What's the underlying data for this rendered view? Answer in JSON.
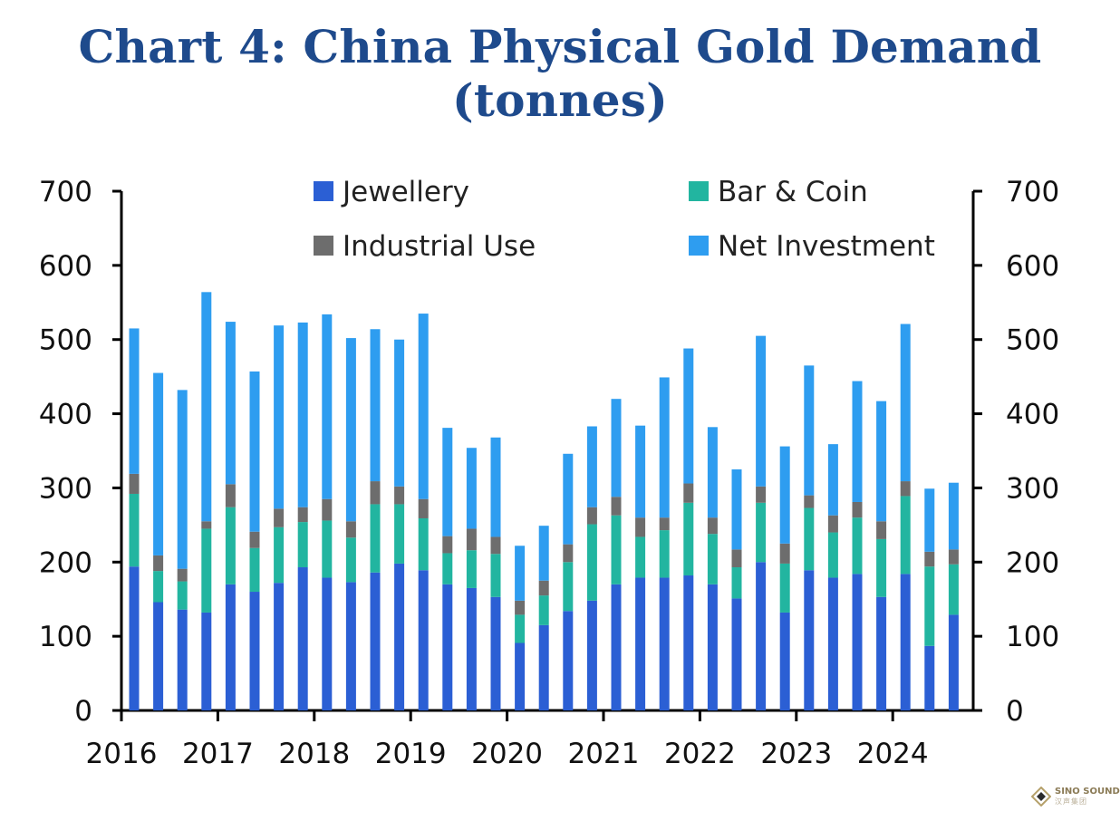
{
  "chart_data": {
    "type": "bar",
    "stacked": true,
    "title": "Chart 4: China Physical Gold Demand (tonnes)",
    "xlabel": "",
    "ylabel": "",
    "ylim": [
      0,
      700
    ],
    "yticks": [
      "0",
      "100",
      "200",
      "300",
      "400",
      "500",
      "600",
      "700"
    ],
    "year_labels": [
      "2016",
      "2017",
      "2018",
      "2019",
      "2020",
      "2021",
      "2022",
      "2023",
      "2024"
    ],
    "categories": [
      "Q1 2016",
      "Q2 2016",
      "Q3 2016",
      "Q4 2016",
      "Q1 2017",
      "Q2 2017",
      "Q3 2017",
      "Q4 2017",
      "Q1 2018",
      "Q2 2018",
      "Q3 2018",
      "Q4 2018",
      "Q1 2019",
      "Q2 2019",
      "Q3 2019",
      "Q4 2019",
      "Q1 2020",
      "Q2 2020",
      "Q3 2020",
      "Q4 2020",
      "Q1 2021",
      "Q2 2021",
      "Q3 2021",
      "Q4 2021",
      "Q1 2022",
      "Q2 2022",
      "Q3 2022",
      "Q4 2022",
      "Q1 2023",
      "Q2 2023",
      "Q3 2023",
      "Q4 2023",
      "Q1 2024",
      "Q2 2024",
      "Q3 2024"
    ],
    "legend": {
      "position": "top",
      "columns": 2
    },
    "series": [
      {
        "name": "Jewellery",
        "color": "#2b5fd4",
        "values": [
          194,
          146,
          136,
          132,
          170,
          160,
          172,
          193,
          179,
          173,
          186,
          198,
          189,
          170,
          165,
          153,
          91,
          115,
          134,
          148,
          170,
          179,
          179,
          182,
          170,
          151,
          200,
          132,
          189,
          179,
          184,
          153,
          184,
          87,
          129
        ]
      },
      {
        "name": "Bar & Coin",
        "color": "#22b5a0",
        "values": [
          98,
          42,
          38,
          113,
          104,
          59,
          75,
          61,
          77,
          60,
          92,
          80,
          70,
          42,
          51,
          58,
          38,
          40,
          66,
          103,
          93,
          55,
          64,
          98,
          68,
          42,
          80,
          66,
          84,
          61,
          76,
          78,
          105,
          107,
          68
        ]
      },
      {
        "name": "Industrial Use",
        "color": "#6d6d6d",
        "values": [
          27,
          21,
          17,
          10,
          31,
          22,
          25,
          20,
          29,
          22,
          31,
          24,
          26,
          23,
          29,
          23,
          19,
          20,
          24,
          23,
          25,
          26,
          17,
          26,
          22,
          24,
          22,
          27,
          17,
          23,
          21,
          24,
          20,
          20,
          20
        ]
      },
      {
        "name": "Net Investment",
        "color": "#2e9df0",
        "values": [
          196,
          246,
          241,
          309,
          219,
          216,
          247,
          249,
          249,
          247,
          205,
          198,
          250,
          146,
          109,
          134,
          74,
          74,
          122,
          109,
          132,
          124,
          189,
          182,
          122,
          108,
          203,
          131,
          175,
          96,
          163,
          162,
          212,
          85,
          90
        ]
      }
    ]
  },
  "watermark": {
    "text": "SINO SOUND",
    "sub": "汉声集团"
  }
}
